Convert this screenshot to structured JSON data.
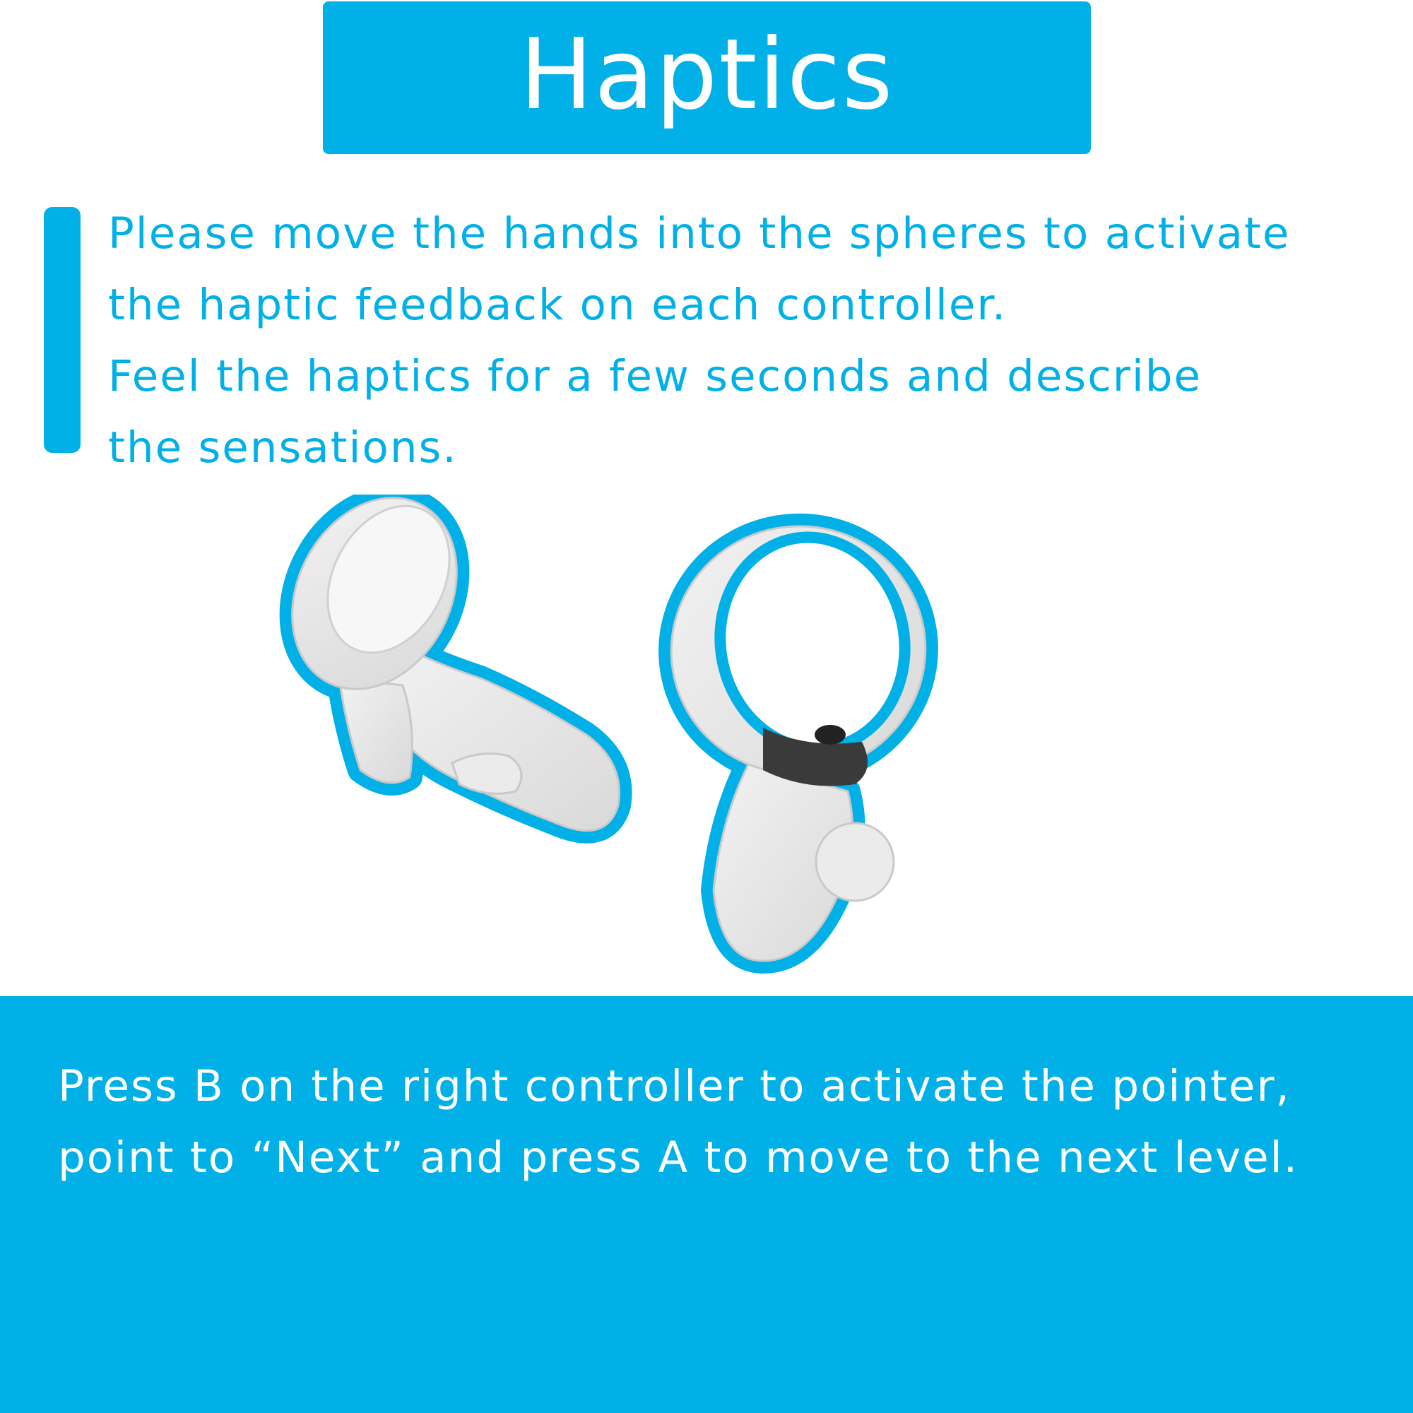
{
  "header": {
    "title": "Haptics"
  },
  "instructions": {
    "lines": [
      "Please move the hands into the spheres to activate",
      "the haptic feedback on each controller.",
      "Feel the haptics for a few seconds and describe",
      "the sensations."
    ]
  },
  "illustration": {
    "left_controller_icon": "vr-controller-left-icon",
    "right_controller_icon": "vr-controller-right-icon",
    "outline_color": "#00b0e6",
    "body_color": "#e6e6e6"
  },
  "footer": {
    "lines": [
      "Press B on the right controller to activate the pointer,",
      "point to “Next” and press A to move to the next level."
    ]
  },
  "colors": {
    "accent": "#00b0e6",
    "background": "#ffffff",
    "footer_text": "#ffffff"
  }
}
